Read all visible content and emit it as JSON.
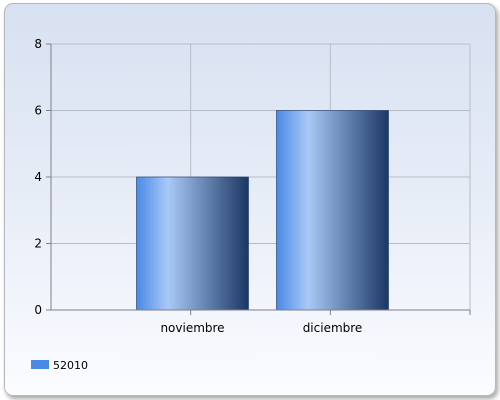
{
  "chart_data": {
    "type": "bar",
    "categories": [
      "noviembre",
      "diciembre"
    ],
    "series": [
      {
        "name": "52010",
        "values": [
          4,
          6
        ],
        "color": "#4a8ae6"
      }
    ],
    "ylim": [
      0,
      8
    ],
    "yticks": [
      0,
      2,
      4,
      6,
      8
    ],
    "grid": true,
    "legend_position": "bottom-left",
    "colors": {
      "bar_light": "#a9c9f6",
      "bar_mid": "#4a8ae6",
      "bar_dark": "#1b3763",
      "grid": "#b8bcc6",
      "axis": "#7d818a"
    }
  }
}
